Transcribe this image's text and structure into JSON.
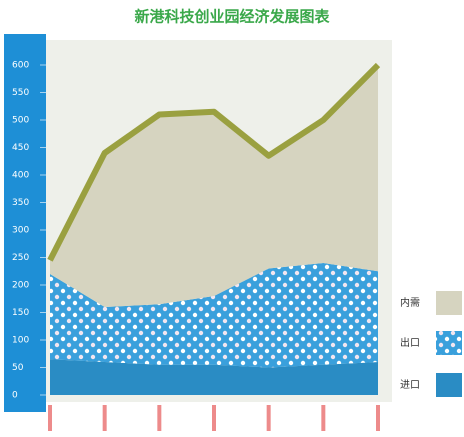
{
  "chart_data": {
    "type": "stacked_area",
    "title": "新港科技创业园经济发展图表",
    "categories": [
      null,
      null,
      null,
      null,
      null,
      null,
      null
    ],
    "series": [
      {
        "name": "进口",
        "color": "#2a8cc4",
        "values": [
          65,
          60,
          55,
          55,
          50,
          55,
          60
        ]
      },
      {
        "name": "出口",
        "color": "#3aa0dc",
        "pattern": "dots",
        "values": [
          155,
          100,
          110,
          125,
          180,
          185,
          165
        ]
      },
      {
        "name": "内需",
        "color": "#d6d4c0",
        "values": [
          25,
          280,
          345,
          335,
          205,
          260,
          375
        ]
      }
    ],
    "ylim": [
      0,
      600
    ],
    "yticks": [
      0,
      50,
      100,
      150,
      200,
      250,
      300,
      350,
      400,
      450,
      500,
      550,
      600
    ],
    "grid": false,
    "legend": "right"
  }
}
